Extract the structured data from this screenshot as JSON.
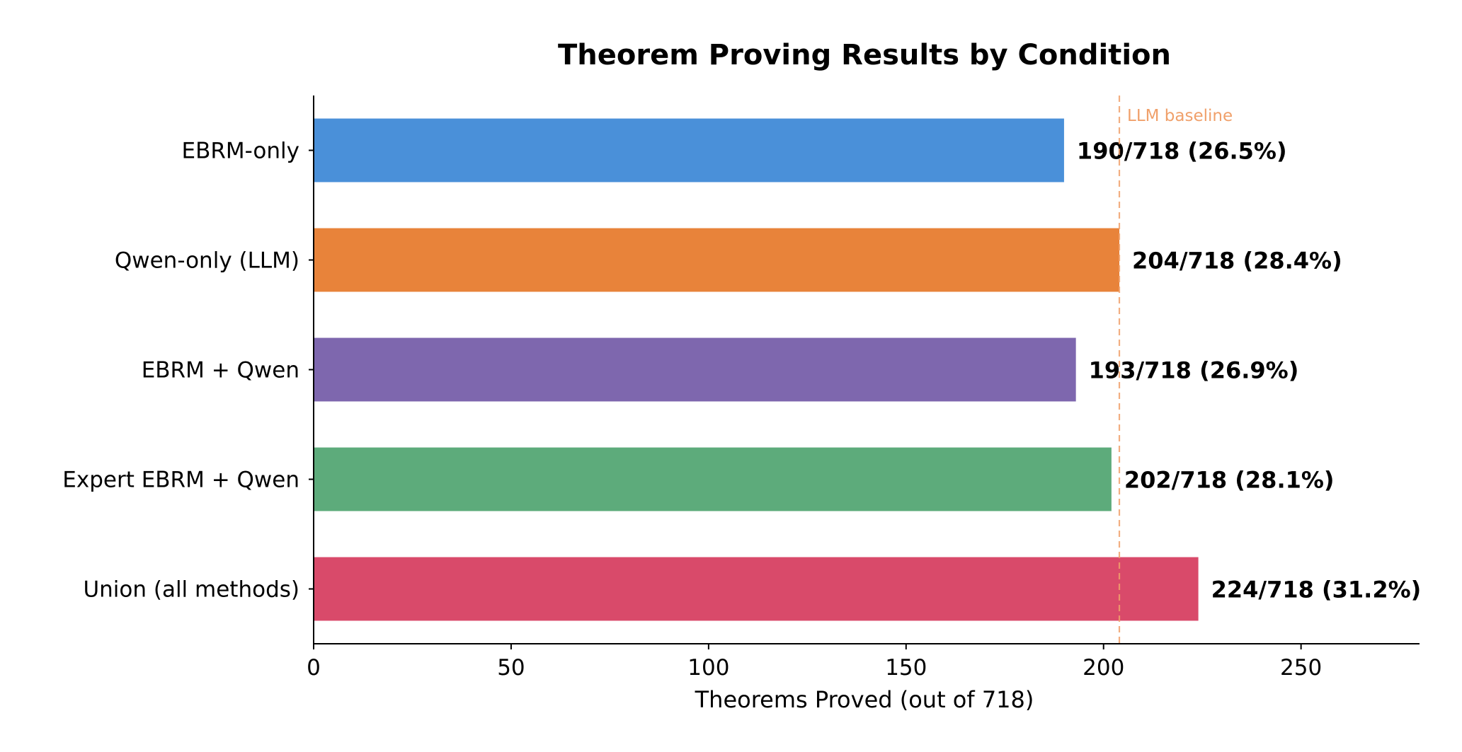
{
  "chart_data": {
    "type": "bar",
    "orientation": "horizontal",
    "title": "Theorem Proving Results by Condition",
    "xlabel": "Theorems Proved (out of 718)",
    "ylabel": "",
    "xlim": [
      0,
      280
    ],
    "xticks": [
      0,
      50,
      100,
      150,
      200,
      250
    ],
    "total": 718,
    "grid": false,
    "categories": [
      "EBRM-only",
      "Qwen-only (LLM)",
      "EBRM + Qwen",
      "Expert EBRM + Qwen",
      "Union (all methods)"
    ],
    "values": [
      190,
      204,
      193,
      202,
      224
    ],
    "data_labels": [
      "190/718 (26.5%)",
      "204/718 (28.4%)",
      "193/718 (26.9%)",
      "202/718 (28.1%)",
      "224/718 (31.2%)"
    ],
    "colors": [
      "#4a90d9",
      "#e8833a",
      "#7e67ae",
      "#5dab7b",
      "#d94a6a"
    ],
    "reference_line": {
      "label": "LLM baseline",
      "value": 204,
      "color": "#f0a06a"
    }
  }
}
